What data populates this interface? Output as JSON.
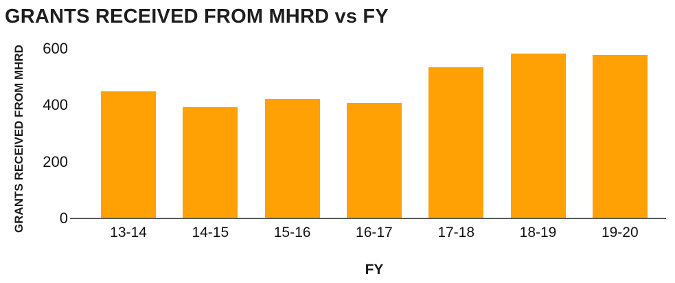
{
  "chart_data": {
    "type": "bar",
    "title": "GRANTS RECEIVED FROM MHRD vs FY",
    "xlabel": "FY",
    "ylabel": "GRANTS RECEIVED FROM MHRD",
    "categories": [
      "13-14",
      "14-15",
      "15-16",
      "16-17",
      "17-18",
      "18-19",
      "19-20"
    ],
    "values": [
      450,
      395,
      425,
      410,
      535,
      585,
      580
    ],
    "ylim": [
      0,
      600
    ],
    "yticks": [
      0,
      200,
      400,
      600
    ],
    "grid": false,
    "legend": "none",
    "colors": {
      "bar": "#FFA005",
      "axis": "#59595B",
      "title": "#1E1E1E",
      "tick": "#111111",
      "background": "#FFFFFF"
    }
  }
}
